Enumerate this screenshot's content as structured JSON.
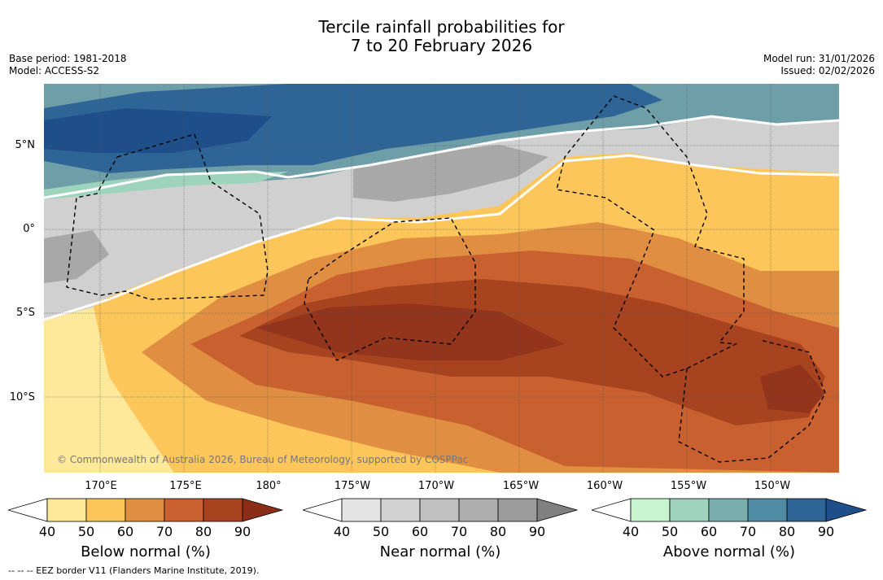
{
  "header": {
    "title_line1": "Tercile rainfall probabilities for",
    "title_line2": "7 to 20 February 2026",
    "base_period": "Base period: 1981-2018",
    "model": "Model: ACCESS-S2",
    "model_run": "Model run: 31/01/2026",
    "issued": "Issued: 02/02/2026"
  },
  "map": {
    "lat_labels": [
      "5°N",
      "0°",
      "5°S",
      "10°S"
    ],
    "lon_labels": [
      "170°E",
      "175°E",
      "180°",
      "175°W",
      "170°W",
      "165°W",
      "160°W",
      "155°W",
      "150°W"
    ],
    "copyright": "© Commonwealth of Australia 2026, Bureau of Meteorology, supported by COSPPac"
  },
  "colorbars": [
    {
      "label": "Below normal (%)",
      "ticks": [
        "40",
        "50",
        "60",
        "70",
        "80",
        "90"
      ],
      "colors": [
        "#ffffff",
        "#fee89a",
        "#fdc65a",
        "#e08e42",
        "#c8602f",
        "#a8431f",
        "#8a2e18"
      ]
    },
    {
      "label": "Near normal (%)",
      "ticks": [
        "40",
        "50",
        "60",
        "70",
        "80",
        "90"
      ],
      "colors": [
        "#ffffff",
        "#e4e4e4",
        "#d2d2d2",
        "#c0c0c0",
        "#aeaeae",
        "#9c9c9c",
        "#808080"
      ]
    },
    {
      "label": "Above normal (%)",
      "ticks": [
        "40",
        "50",
        "60",
        "70",
        "80",
        "90"
      ],
      "colors": [
        "#ffffff",
        "#c8f5d0",
        "#9ed3bd",
        "#79adae",
        "#4f8ba3",
        "#2f6596",
        "#1e4f8a"
      ]
    }
  ],
  "footnote": "--  --  -- EEZ border V11 (Flanders Marine Institute, 2019)."
}
